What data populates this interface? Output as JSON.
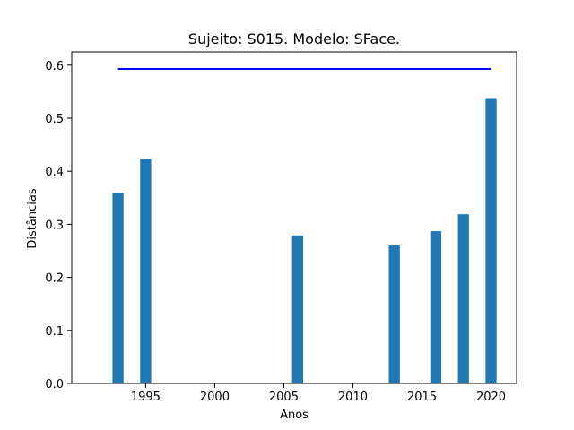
{
  "chart_data": {
    "type": "bar",
    "title": "Sujeito: S015. Modelo: SFace.",
    "xlabel": "Anos",
    "ylabel": "Distâncias",
    "x": [
      1993,
      1995,
      2006,
      2013,
      2016,
      2018,
      2020
    ],
    "values": [
      0.359,
      0.423,
      0.279,
      0.26,
      0.287,
      0.319,
      0.538
    ],
    "bar_color": "#1f77b4",
    "xlim": [
      1989.65,
      2021.85
    ],
    "ylim": [
      0,
      0.625
    ],
    "x_ticks": [
      1995,
      2000,
      2005,
      2010,
      2015,
      2020
    ],
    "y_ticks": [
      0.0,
      0.1,
      0.2,
      0.3,
      0.4,
      0.5,
      0.6
    ],
    "threshold": {
      "value": 0.593,
      "x_start": 1993,
      "x_end": 2020,
      "color": "#0000ff"
    },
    "grid": false,
    "legend": "none"
  }
}
